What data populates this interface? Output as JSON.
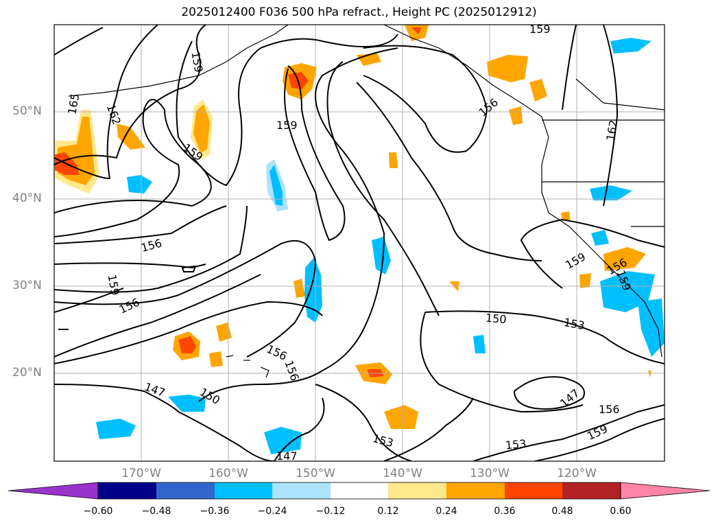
{
  "title": "2025012400 F036 500 hPa refract., Height PC (2025012912)",
  "lat_labels": [
    "50°N",
    "40°N",
    "30°N",
    "20°N"
  ],
  "lon_labels": [
    "170°W",
    "160°W",
    "150°W",
    "140°W",
    "130°W",
    "120°W"
  ],
  "colorbar": {
    "ticks": [
      "−0.60",
      "−0.48",
      "−0.36",
      "−0.24",
      "−0.12",
      "0.12",
      "0.24",
      "0.36",
      "0.48",
      "0.60"
    ],
    "colors": [
      "#9933cc",
      "#00008b",
      "#3366cc",
      "#00bfff",
      "#aae3fb",
      "#ffffff",
      "#ffe98a",
      "#ffa500",
      "#ff4500",
      "#b22222",
      "#ff85a8"
    ]
  },
  "contour_labels": {
    "c1": "165",
    "c2": "162",
    "c3": "159",
    "c4": "159",
    "c5": "159",
    "c6": "159",
    "c7": "156",
    "c8": "156",
    "c9": "159",
    "c10": "156",
    "c11": "156",
    "c12": "156",
    "c13": "150",
    "c14": "153",
    "c15": "147",
    "c16": "150",
    "c17": "147",
    "c18": "153",
    "c19": "153",
    "c20": "147",
    "c21": "156",
    "c22": "159",
    "c23": "159",
    "c24": "159",
    "c25": "162",
    "c26": "156"
  }
}
